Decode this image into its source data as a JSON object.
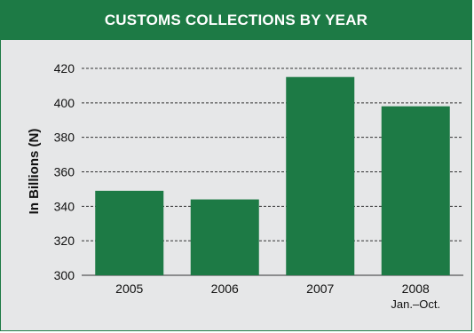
{
  "chart_data": {
    "type": "bar",
    "title": "CUSTOMS COLLECTIONS BY YEAR",
    "ylabel": "In Billions (N)",
    "xlabel": "",
    "categories": [
      "2005",
      "2006",
      "2007",
      "2008"
    ],
    "category_sublabels": [
      "",
      "",
      "",
      "Jan.–Oct."
    ],
    "values": [
      349,
      344,
      415,
      398
    ],
    "ylim": [
      300,
      420
    ],
    "yticks": [
      300,
      320,
      340,
      360,
      380,
      400,
      420
    ],
    "grid": true,
    "legend": "none"
  },
  "colors": {
    "bar": "#1d7a45",
    "title_bar": "#1d7a45",
    "background": "#e6e7e8",
    "grid": "#333333"
  }
}
